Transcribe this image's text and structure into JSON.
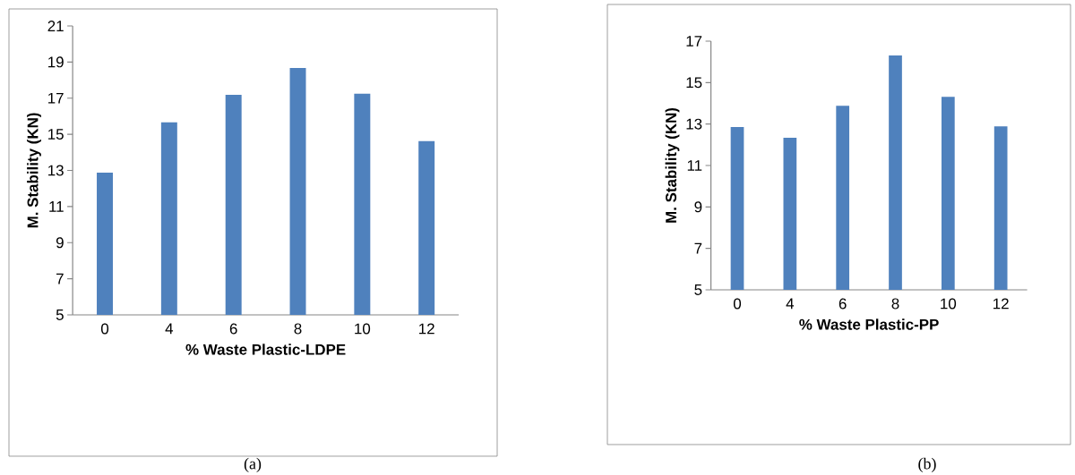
{
  "chart_data": [
    {
      "type": "bar",
      "xlabel": "% Waste Plastic-LDPE",
      "ylabel": "M. Stability (KN)",
      "categories": [
        "0",
        "4",
        "6",
        "8",
        "10",
        "12"
      ],
      "values": [
        12.87,
        15.66,
        17.18,
        18.67,
        17.25,
        14.62
      ],
      "color": "#4f81bd",
      "ylim": [
        5,
        21
      ],
      "yticks": [
        5,
        7,
        9,
        11,
        13,
        15,
        17,
        19,
        21
      ],
      "annotations": [
        "(a)"
      ]
    },
    {
      "type": "bar",
      "xlabel": "% Waste Plastic-PP",
      "ylabel": "M. Stability (KN)",
      "categories": [
        "0",
        "4",
        "6",
        "8",
        "10",
        "12"
      ],
      "values": [
        12.86,
        12.34,
        13.88,
        16.31,
        14.31,
        12.89
      ],
      "color": "#4f81bd",
      "ylim": [
        5,
        17
      ],
      "yticks": [
        5,
        7,
        9,
        11,
        13,
        15,
        17
      ],
      "annotations": [
        "(b)"
      ]
    }
  ]
}
